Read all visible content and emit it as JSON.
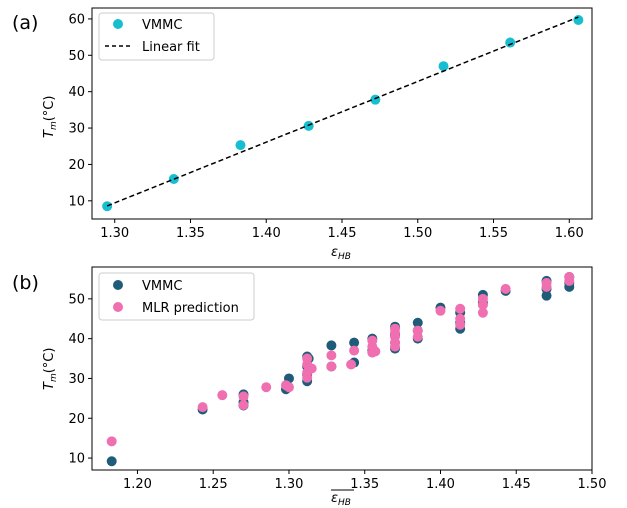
{
  "chart_data": [
    {
      "panel_label": "(a)",
      "type": "scatter",
      "xlabel": "ε_HB",
      "ylabel": "T_m(°C)",
      "xlim": [
        1.285,
        1.615
      ],
      "ylim": [
        5,
        63
      ],
      "xticks": [
        1.3,
        1.35,
        1.4,
        1.45,
        1.5,
        1.55,
        1.6
      ],
      "xtick_labels": [
        "1.30",
        "1.35",
        "1.40",
        "1.45",
        "1.50",
        "1.55",
        "1.60"
      ],
      "yticks": [
        10,
        20,
        30,
        40,
        50,
        60
      ],
      "ytick_labels": [
        "10",
        "20",
        "30",
        "40",
        "50",
        "60"
      ],
      "legend_placement": "top-left",
      "series": [
        {
          "name": "VMMC",
          "kind": "points",
          "color": "#17becf",
          "x": [
            1.295,
            1.339,
            1.383,
            1.428,
            1.472,
            1.517,
            1.561,
            1.606
          ],
          "y": [
            8.5,
            16.0,
            25.3,
            30.6,
            37.8,
            47.0,
            53.5,
            59.7
          ]
        },
        {
          "name": "Linear fit",
          "kind": "dashed-line",
          "color": "#000000",
          "x": [
            1.295,
            1.606
          ],
          "y": [
            8.6,
            60.5
          ]
        }
      ]
    },
    {
      "panel_label": "(b)",
      "type": "scatter",
      "xlabel": "ε_HB (overlined)",
      "ylabel": "T_m(°C)",
      "xlim": [
        1.17,
        1.5
      ],
      "ylim": [
        7,
        58
      ],
      "xticks": [
        1.2,
        1.25,
        1.3,
        1.35,
        1.4,
        1.45,
        1.5
      ],
      "xtick_labels": [
        "1.20",
        "1.25",
        "1.30",
        "1.35",
        "1.40",
        "1.45",
        "1.50"
      ],
      "yticks": [
        10,
        20,
        30,
        40,
        50
      ],
      "ytick_labels": [
        "10",
        "20",
        "30",
        "40",
        "50"
      ],
      "legend_placement": "top-left",
      "series": [
        {
          "name": "VMMC",
          "kind": "points",
          "color": "#1f5c7a",
          "x": [
            1.183,
            1.243,
            1.27,
            1.27,
            1.27,
            1.298,
            1.3,
            1.312,
            1.312,
            1.312,
            1.312,
            1.313,
            1.328,
            1.328,
            1.343,
            1.343,
            1.355,
            1.355,
            1.37,
            1.37,
            1.37,
            1.37,
            1.385,
            1.385,
            1.385,
            1.4,
            1.413,
            1.413,
            1.413,
            1.428,
            1.428,
            1.443,
            1.47,
            1.47,
            1.47,
            1.485,
            1.485,
            1.485
          ],
          "y": [
            9.2,
            22.2,
            24.0,
            26.0,
            23.2,
            27.3,
            30.0,
            29.3,
            31.0,
            33.0,
            35.5,
            35.0,
            38.3,
            33.0,
            39.0,
            34.0,
            40.0,
            37.0,
            43.0,
            41.0,
            39.0,
            37.5,
            44.0,
            42.0,
            40.0,
            47.8,
            46.5,
            44.0,
            42.5,
            51.0,
            49.0,
            52.0,
            54.5,
            52.5,
            50.8,
            55.5,
            54.0,
            53.0
          ]
        },
        {
          "name": "MLR prediction",
          "kind": "points",
          "color": "#f06fb0",
          "x": [
            1.183,
            1.243,
            1.256,
            1.27,
            1.27,
            1.285,
            1.298,
            1.3,
            1.312,
            1.312,
            1.312,
            1.312,
            1.315,
            1.328,
            1.328,
            1.341,
            1.343,
            1.355,
            1.355,
            1.355,
            1.357,
            1.37,
            1.37,
            1.37,
            1.37,
            1.37,
            1.385,
            1.385,
            1.4,
            1.413,
            1.413,
            1.413,
            1.428,
            1.428,
            1.428,
            1.443,
            1.47,
            1.47,
            1.485,
            1.485
          ],
          "y": [
            14.2,
            22.8,
            25.8,
            23.3,
            25.5,
            27.8,
            28.3,
            27.8,
            30.2,
            31.5,
            33.5,
            35.0,
            32.5,
            35.8,
            33.0,
            33.5,
            37.0,
            36.5,
            38.0,
            39.5,
            36.8,
            38.0,
            39.0,
            40.5,
            41.5,
            42.5,
            40.5,
            42.0,
            47.0,
            43.5,
            45.0,
            47.5,
            46.5,
            48.5,
            50.0,
            52.5,
            53.0,
            54.0,
            54.5,
            55.5
          ]
        }
      ]
    }
  ],
  "legend_a": {
    "item1": "VMMC",
    "item2": "Linear fit"
  },
  "legend_b": {
    "item1": "VMMC",
    "item2": "MLR prediction"
  },
  "labels": {
    "panel_a": "(a)",
    "panel_b": "(b)",
    "xlabel_a_main": "ε",
    "xlabel_a_sub": "HB",
    "xlabel_b_main": "ε",
    "xlabel_b_sub": "HB",
    "ylabel_main": "T",
    "ylabel_sub": "m",
    "ylabel_unit": "(°C)"
  }
}
